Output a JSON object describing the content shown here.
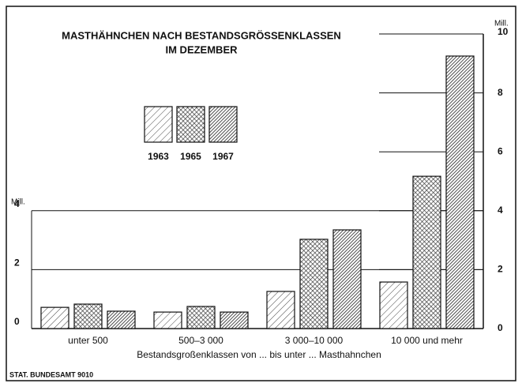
{
  "chart_data": {
    "type": "bar",
    "title": "MASTHÄHNCHEN NACH BESTANDSGRÖSSENKLASSEN",
    "subtitle": "IM DEZEMBER",
    "xlabel": "Bestandsgroßenklassen von ... bis unter ... Masthahnchen",
    "ylabel": "Mill.",
    "y2label": "Mill.",
    "source": "STAT. BUNDESAMT 9010",
    "categories": [
      "unter 500",
      "500–3 000",
      "3 000–10 000",
      "10 000 und mehr"
    ],
    "series": [
      {
        "name": "1963",
        "color": "#444444",
        "values": [
          0.72,
          0.56,
          1.26,
          1.58
        ]
      },
      {
        "name": "1965",
        "color": "#333333",
        "values": [
          0.83,
          0.75,
          3.03,
          5.17
        ]
      },
      {
        "name": "1967",
        "color": "#222222",
        "values": [
          0.59,
          0.56,
          3.35,
          9.25
        ]
      }
    ],
    "ylim": [
      0,
      10
    ],
    "yticks": [
      0,
      2,
      4
    ],
    "y2lim": [
      0,
      10
    ],
    "y2ticks": [
      0,
      2,
      4,
      6,
      8,
      10
    ],
    "grid": true
  }
}
